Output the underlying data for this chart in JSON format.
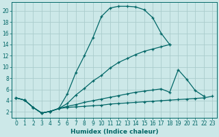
{
  "xlabel": "Humidex (Indice chaleur)",
  "background_color": "#cce8e8",
  "grid_color": "#aacccc",
  "line_color": "#006666",
  "xlim": [
    -0.5,
    23.5
  ],
  "ylim": [
    1.0,
    21.5
  ],
  "xticks": [
    0,
    1,
    2,
    3,
    4,
    5,
    6,
    7,
    8,
    9,
    10,
    11,
    12,
    13,
    14,
    15,
    16,
    17,
    18,
    19,
    20,
    21,
    22,
    23
  ],
  "yticks": [
    2,
    4,
    6,
    8,
    10,
    12,
    14,
    16,
    18,
    20
  ],
  "c1x": [
    0,
    1,
    2,
    3,
    4,
    5,
    6,
    7,
    8,
    9,
    10,
    11,
    12,
    13,
    14,
    15,
    16,
    17,
    18
  ],
  "c1y": [
    4.5,
    4.1,
    2.8,
    1.8,
    2.1,
    2.6,
    5.2,
    9.0,
    12.0,
    15.2,
    19.0,
    20.5,
    20.8,
    20.8,
    20.7,
    20.2,
    18.8,
    16.0,
    14.0
  ],
  "c2x": [
    0,
    1,
    2,
    3,
    4,
    5,
    6,
    7,
    8,
    9,
    10,
    11,
    12,
    13,
    14,
    15,
    16,
    17,
    18
  ],
  "c2y": [
    4.5,
    4.1,
    2.8,
    1.8,
    2.1,
    2.6,
    3.5,
    5.0,
    6.2,
    7.5,
    8.5,
    9.8,
    10.8,
    11.5,
    12.2,
    12.8,
    13.2,
    13.6,
    14.0
  ],
  "c3x": [
    0,
    1,
    2,
    3,
    4,
    5,
    6,
    7,
    8,
    9,
    10,
    11,
    12,
    13,
    14,
    15,
    16,
    17,
    18,
    19,
    20,
    21,
    22,
    23
  ],
  "c3y": [
    4.5,
    4.1,
    2.8,
    1.8,
    2.1,
    2.6,
    3.0,
    3.3,
    3.7,
    4.0,
    4.3,
    4.6,
    4.9,
    5.2,
    5.5,
    5.7,
    5.9,
    6.1,
    5.5,
    9.5,
    7.8,
    5.8,
    4.8,
    null
  ],
  "c4x": [
    1,
    2,
    3,
    4,
    5,
    6,
    7,
    8,
    9,
    10,
    11,
    12,
    13,
    14,
    15,
    16,
    17,
    18,
    19,
    20,
    21,
    22,
    23
  ],
  "c4y": [
    4.1,
    2.8,
    1.8,
    2.1,
    2.6,
    2.8,
    2.9,
    3.0,
    3.1,
    3.2,
    3.4,
    3.5,
    3.6,
    3.7,
    3.8,
    3.9,
    4.0,
    4.1,
    4.2,
    4.3,
    4.4,
    4.5,
    4.8
  ]
}
